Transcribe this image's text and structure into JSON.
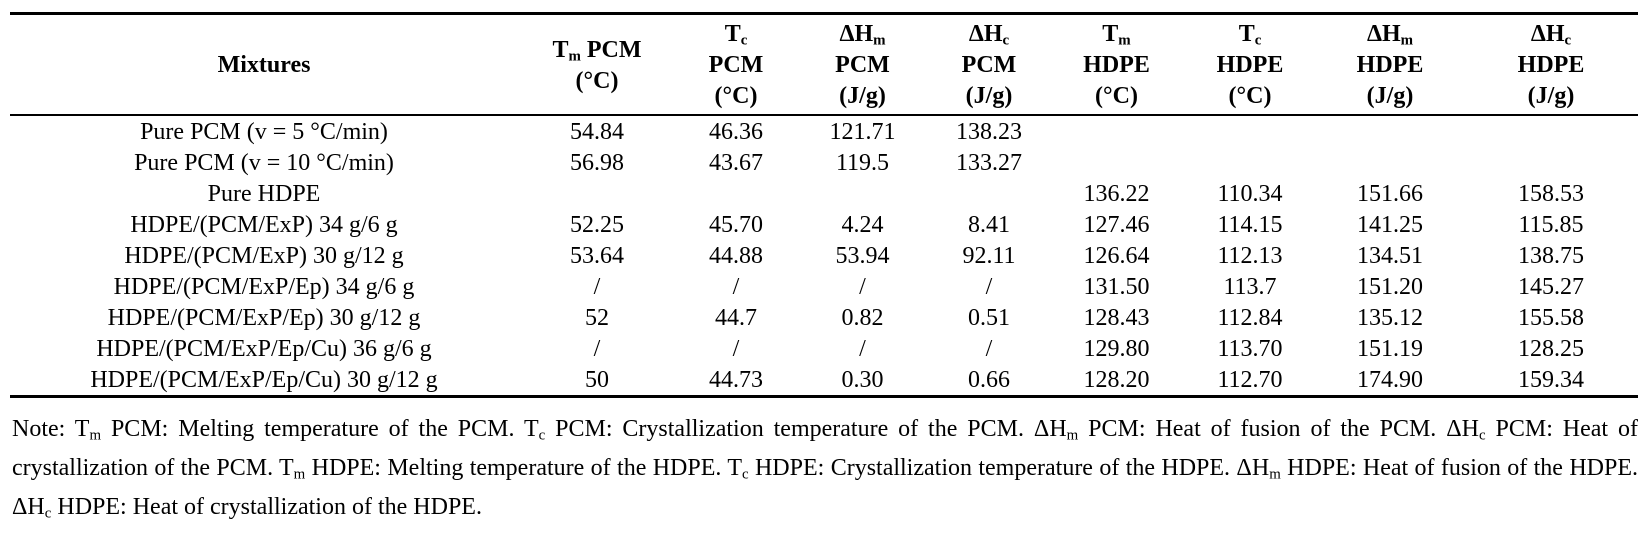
{
  "table": {
    "headers": [
      {
        "lines": [
          {
            "sym": "T",
            "sub": "m",
            "text": " PCM"
          },
          {
            "text": "(°C)"
          }
        ]
      },
      {
        "lines": [
          {
            "sym": "T",
            "sub": "c"
          },
          {
            "text": "PCM"
          },
          {
            "text": "(°C)"
          }
        ]
      },
      {
        "lines": [
          {
            "sym": "ΔH",
            "sub": "m"
          },
          {
            "text": "PCM"
          },
          {
            "text": "(J/g)"
          }
        ]
      },
      {
        "lines": [
          {
            "sym": "ΔH",
            "sub": "c"
          },
          {
            "text": "PCM"
          },
          {
            "text": "(J/g)"
          }
        ]
      },
      {
        "lines": [
          {
            "sym": "T",
            "sub": "m"
          },
          {
            "text": "HDPE"
          },
          {
            "text": "(°C)"
          }
        ]
      },
      {
        "lines": [
          {
            "sym": "T",
            "sub": "c"
          },
          {
            "text": "HDPE"
          },
          {
            "text": "(°C)"
          }
        ]
      },
      {
        "lines": [
          {
            "sym": "ΔH",
            "sub": "m"
          },
          {
            "text": "HDPE"
          },
          {
            "text": "(J/g)"
          }
        ]
      },
      {
        "lines": [
          {
            "sym": "ΔH",
            "sub": "c"
          },
          {
            "text": "HDPE"
          },
          {
            "text": "(J/g)"
          }
        ]
      }
    ],
    "first_header": "Mixtures",
    "rows": [
      [
        "Pure PCM (v = 5 °C/min)",
        "54.84",
        "46.36",
        "121.71",
        "138.23",
        "",
        "",
        "",
        ""
      ],
      [
        "Pure PCM (v = 10 °C/min)",
        "56.98",
        "43.67",
        "119.5",
        "133.27",
        "",
        "",
        "",
        ""
      ],
      [
        "Pure HDPE",
        "",
        "",
        "",
        "",
        "136.22",
        "110.34",
        "151.66",
        "158.53"
      ],
      [
        "HDPE/(PCM/ExP) 34 g/6 g",
        "52.25",
        "45.70",
        "4.24",
        "8.41",
        "127.46",
        "114.15",
        "141.25",
        "115.85"
      ],
      [
        "HDPE/(PCM/ExP) 30 g/12 g",
        "53.64",
        "44.88",
        "53.94",
        "92.11",
        "126.64",
        "112.13",
        "134.51",
        "138.75"
      ],
      [
        "HDPE/(PCM/ExP/Ep) 34 g/6 g",
        "/",
        "/",
        "/",
        "/",
        "131.50",
        "113.7",
        "151.20",
        "145.27"
      ],
      [
        "HDPE/(PCM/ExP/Ep) 30 g/12 g",
        "52",
        "44.7",
        "0.82",
        "0.51",
        "128.43",
        "112.84",
        "135.12",
        "155.58"
      ],
      [
        "HDPE/(PCM/ExP/Ep/Cu) 36 g/6 g",
        "/",
        "/",
        "/",
        "/",
        "129.80",
        "113.70",
        "151.19",
        "128.25"
      ],
      [
        "HDPE/(PCM/ExP/Ep/Cu) 30 g/12 g",
        "50",
        "44.73",
        "0.30",
        "0.66",
        "128.20",
        "112.70",
        "174.90",
        "159.34"
      ]
    ]
  },
  "note": {
    "parts": [
      {
        "text": "Note: T"
      },
      {
        "sub": "m"
      },
      {
        "text": " PCM: Melting temperature of the PCM. T"
      },
      {
        "sub": "c"
      },
      {
        "text": " PCM: Crystallization temperature of the PCM. ΔH"
      },
      {
        "sub": "m"
      },
      {
        "text": " PCM: Heat of fusion of the PCM. ΔH"
      },
      {
        "sub": "c"
      },
      {
        "text": " PCM: Heat of crystallization of the PCM. T"
      },
      {
        "sub": "m"
      },
      {
        "text": " HDPE: Melting temperature of the HDPE. T"
      },
      {
        "sub": "c"
      },
      {
        "text": " HDPE: Crystallization temperature of the HDPE. ΔH"
      },
      {
        "sub": "m"
      },
      {
        "text": " HDPE: Heat of fusion of the HDPE. ΔH"
      },
      {
        "sub": "c"
      },
      {
        "text": " HDPE: Heat of crystallization of the HDPE."
      }
    ]
  }
}
